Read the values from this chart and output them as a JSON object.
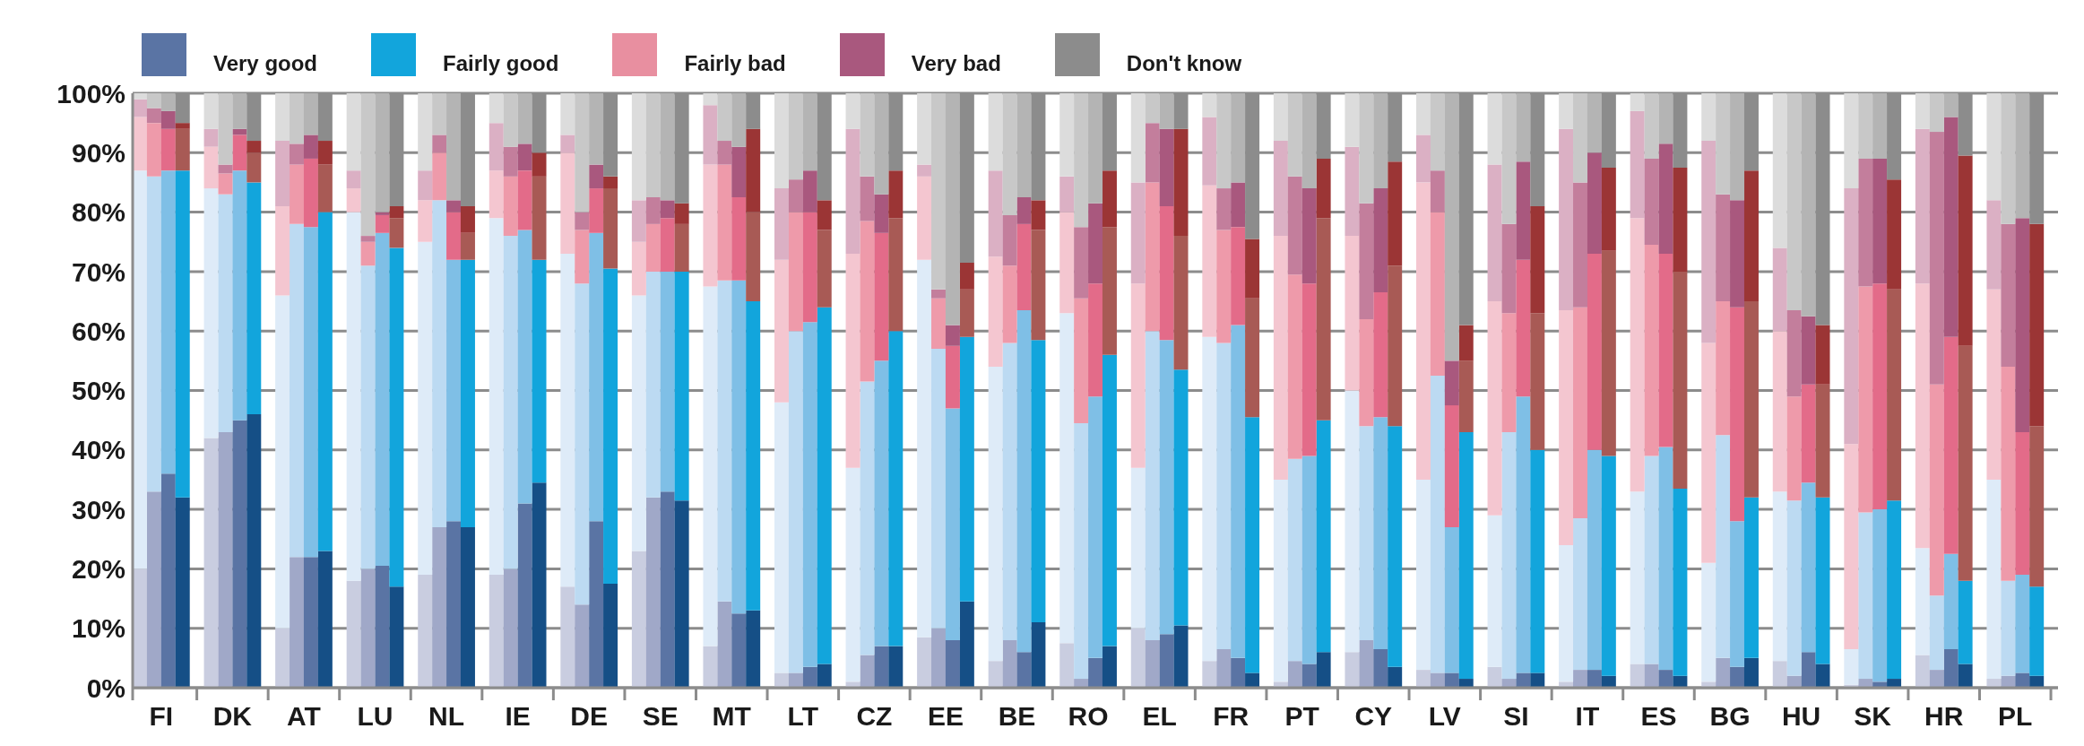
{
  "chart_data": {
    "type": "bar",
    "stacked": true,
    "legend": "top left",
    "grid": "y",
    "ylim": [
      0,
      100
    ],
    "yticks": [
      {
        "value": 0,
        "label": "0%"
      },
      {
        "value": 10,
        "label": "10%"
      },
      {
        "value": 20,
        "label": "20%"
      },
      {
        "value": 30,
        "label": "30%"
      },
      {
        "value": 40,
        "label": "40%"
      },
      {
        "value": 50,
        "label": "50%"
      },
      {
        "value": 60,
        "label": "60%"
      },
      {
        "value": 70,
        "label": "70%"
      },
      {
        "value": 80,
        "label": "80%"
      },
      {
        "value": 90,
        "label": "90%"
      },
      {
        "value": 100,
        "label": "100%"
      }
    ],
    "categories": [
      null,
      "FI",
      null,
      null,
      null,
      null,
      "DK",
      null,
      null,
      null,
      null,
      "AT",
      null,
      null,
      null,
      null,
      "LU",
      null,
      null,
      null,
      null,
      "NL",
      null,
      null,
      null,
      null,
      "IE",
      null,
      null,
      null,
      null,
      "DE",
      null,
      null,
      null,
      null,
      "SE",
      null,
      null,
      null,
      null,
      "MT",
      null,
      null,
      null,
      null,
      "LT",
      null,
      null,
      null,
      null,
      "CZ",
      null,
      null,
      null,
      null,
      "EE",
      null,
      null,
      null,
      null,
      "BE",
      null,
      null,
      null,
      null,
      "RO",
      null,
      null,
      null,
      null,
      "EL",
      null,
      null,
      null,
      null,
      "FR",
      null,
      null,
      null,
      null,
      "PT",
      null,
      null,
      null,
      null,
      "CY",
      null,
      null,
      null,
      null,
      "LV",
      null,
      null,
      null,
      null,
      "SI",
      null,
      null,
      null,
      null,
      "IT",
      null,
      null,
      null,
      null,
      "ES",
      null,
      null,
      null,
      null,
      "BG",
      null,
      null,
      null,
      null,
      "HU",
      null,
      null,
      null,
      null,
      "SK",
      null,
      null,
      null,
      null,
      "HR",
      null,
      null,
      null,
      null,
      "PL",
      null,
      null,
      null
    ],
    "series": [
      {
        "name": "Very good",
        "color": "#5a74a4",
        "values": [
          20,
          33,
          36,
          32,
          null,
          42,
          43,
          45,
          46,
          null,
          10,
          22,
          22,
          23,
          null,
          18,
          20,
          20.5,
          17,
          null,
          19,
          27,
          28,
          27,
          null,
          19,
          20,
          31,
          34.5,
          null,
          17,
          14,
          28,
          17.5,
          null,
          23,
          32,
          33,
          31.5,
          null,
          7,
          14.5,
          12.5,
          13,
          null,
          2.5,
          2.5,
          3.5,
          4,
          null,
          1,
          5.5,
          7,
          7,
          null,
          8.5,
          10,
          8,
          14.5,
          null,
          4.5,
          8,
          6,
          11,
          null,
          7.5,
          1.5,
          5,
          7,
          null,
          10,
          8,
          9,
          10.5,
          null,
          4.5,
          6.5,
          5,
          2.5,
          null,
          1,
          4.5,
          4,
          6,
          null,
          6,
          8,
          6.5,
          3.5,
          null,
          3,
          2.5,
          2.5,
          1.5,
          null,
          3.5,
          1.5,
          2.5,
          2.5,
          null,
          1,
          3,
          3,
          2,
          null,
          4,
          4,
          3,
          2,
          null,
          1,
          5,
          3.5,
          5,
          null,
          4.5,
          2,
          6,
          4,
          null,
          0.5,
          1.5,
          1,
          1.5,
          null,
          5.5,
          3,
          6.5,
          4,
          null,
          1.5,
          2,
          2.5,
          2,
          null
        ],
        "colors": [
          "#c9cde0",
          "#a0a8c8",
          "#5a74a4",
          "#154f86",
          null,
          "#c9cde0",
          "#a0a8c8",
          "#5a74a4",
          "#154f86",
          null,
          "#c9cde0",
          "#a0a8c8",
          "#5a74a4",
          "#154f86",
          null,
          "#c9cde0",
          "#a0a8c8",
          "#5a74a4",
          "#154f86",
          null,
          "#c9cde0",
          "#a0a8c8",
          "#5a74a4",
          "#154f86",
          null,
          "#c9cde0",
          "#a0a8c8",
          "#5a74a4",
          "#154f86",
          null,
          "#c9cde0",
          "#a0a8c8",
          "#5a74a4",
          "#154f86",
          null,
          "#c9cde0",
          "#a0a8c8",
          "#5a74a4",
          "#154f86",
          null,
          "#c9cde0",
          "#a0a8c8",
          "#5a74a4",
          "#154f86",
          null,
          "#c9cde0",
          "#a0a8c8",
          "#5a74a4",
          "#154f86",
          null,
          "#c9cde0",
          "#a0a8c8",
          "#5a74a4",
          "#154f86",
          null,
          "#c9cde0",
          "#a0a8c8",
          "#5a74a4",
          "#154f86",
          null,
          "#c9cde0",
          "#a0a8c8",
          "#5a74a4",
          "#154f86",
          null,
          "#c9cde0",
          "#a0a8c8",
          "#5a74a4",
          "#154f86",
          null,
          "#c9cde0",
          "#a0a8c8",
          "#5a74a4",
          "#154f86",
          null,
          "#c9cde0",
          "#a0a8c8",
          "#5a74a4",
          "#154f86",
          null,
          "#c9cde0",
          "#a0a8c8",
          "#5a74a4",
          "#154f86",
          null,
          "#c9cde0",
          "#a0a8c8",
          "#5a74a4",
          "#154f86",
          null,
          "#c9cde0",
          "#a0a8c8",
          "#5a74a4",
          "#154f86",
          null,
          "#c9cde0",
          "#a0a8c8",
          "#5a74a4",
          "#154f86",
          null,
          "#c9cde0",
          "#a0a8c8",
          "#5a74a4",
          "#154f86",
          null,
          "#c9cde0",
          "#a0a8c8",
          "#5a74a4",
          "#154f86",
          null,
          "#c9cde0",
          "#a0a8c8",
          "#5a74a4",
          "#154f86",
          null,
          "#c9cde0",
          "#a0a8c8",
          "#5a74a4",
          "#154f86",
          null,
          "#c9cde0",
          "#a0a8c8",
          "#5a74a4",
          "#154f86",
          null,
          "#c9cde0",
          "#a0a8c8",
          "#5a74a4",
          "#154f86",
          null,
          "#c9cde0",
          "#a0a8c8",
          "#5a74a4",
          "#154f86",
          null
        ]
      },
      {
        "name": "Fairly good",
        "color": "#12a5dc",
        "values": [
          67,
          53,
          51,
          55,
          null,
          42,
          40,
          42,
          39,
          null,
          56,
          56,
          55.5,
          57,
          null,
          62,
          51,
          56,
          57,
          null,
          56,
          55,
          44,
          45,
          null,
          60,
          56,
          46,
          37.5,
          null,
          56,
          54,
          48.5,
          53,
          null,
          43,
          38,
          37,
          38.5,
          null,
          60.5,
          54,
          56,
          52,
          null,
          45.5,
          57.5,
          58,
          60,
          null,
          36,
          46,
          48,
          53,
          null,
          63.5,
          47,
          39,
          44.5,
          null,
          49.5,
          50,
          57.5,
          47.5,
          null,
          55.5,
          43,
          44,
          49,
          null,
          27,
          52,
          49.5,
          43,
          null,
          54.5,
          51.5,
          56,
          43,
          null,
          34,
          34,
          35,
          39,
          null,
          44,
          36,
          39,
          40.5,
          null,
          32,
          50,
          24.5,
          41.5,
          null,
          25.5,
          41.5,
          46.5,
          37.5,
          null,
          23,
          25.5,
          37,
          37,
          null,
          29,
          35,
          37.5,
          31.5,
          null,
          20,
          37.5,
          24.5,
          27,
          null,
          28.5,
          29.5,
          28.5,
          28,
          null,
          6,
          28,
          29,
          30,
          null,
          18,
          12.5,
          16,
          14,
          null,
          33.5,
          16,
          16.5,
          15,
          null
        ],
        "colors": [
          "#deebf8",
          "#bcdaf2",
          "#7fbfe6",
          "#12a5dc",
          null,
          "#deebf8",
          "#bcdaf2",
          "#7fbfe6",
          "#12a5dc",
          null,
          "#deebf8",
          "#bcdaf2",
          "#7fbfe6",
          "#12a5dc",
          null,
          "#deebf8",
          "#bcdaf2",
          "#7fbfe6",
          "#12a5dc",
          null,
          "#deebf8",
          "#bcdaf2",
          "#7fbfe6",
          "#12a5dc",
          null,
          "#deebf8",
          "#bcdaf2",
          "#7fbfe6",
          "#12a5dc",
          null,
          "#deebf8",
          "#bcdaf2",
          "#7fbfe6",
          "#12a5dc",
          null,
          "#deebf8",
          "#bcdaf2",
          "#7fbfe6",
          "#12a5dc",
          null,
          "#deebf8",
          "#bcdaf2",
          "#7fbfe6",
          "#12a5dc",
          null,
          "#deebf8",
          "#bcdaf2",
          "#7fbfe6",
          "#12a5dc",
          null,
          "#deebf8",
          "#bcdaf2",
          "#7fbfe6",
          "#12a5dc",
          null,
          "#deebf8",
          "#bcdaf2",
          "#7fbfe6",
          "#12a5dc",
          null,
          "#deebf8",
          "#bcdaf2",
          "#7fbfe6",
          "#12a5dc",
          null,
          "#deebf8",
          "#bcdaf2",
          "#7fbfe6",
          "#12a5dc",
          null,
          "#deebf8",
          "#bcdaf2",
          "#7fbfe6",
          "#12a5dc",
          null,
          "#deebf8",
          "#bcdaf2",
          "#7fbfe6",
          "#12a5dc",
          null,
          "#deebf8",
          "#bcdaf2",
          "#7fbfe6",
          "#12a5dc",
          null,
          "#deebf8",
          "#bcdaf2",
          "#7fbfe6",
          "#12a5dc",
          null,
          "#deebf8",
          "#bcdaf2",
          "#7fbfe6",
          "#12a5dc",
          null,
          "#deebf8",
          "#bcdaf2",
          "#7fbfe6",
          "#12a5dc",
          null,
          "#deebf8",
          "#bcdaf2",
          "#7fbfe6",
          "#12a5dc",
          null,
          "#deebf8",
          "#bcdaf2",
          "#7fbfe6",
          "#12a5dc",
          null,
          "#deebf8",
          "#bcdaf2",
          "#7fbfe6",
          "#12a5dc",
          null,
          "#deebf8",
          "#bcdaf2",
          "#7fbfe6",
          "#12a5dc",
          null,
          "#deebf8",
          "#bcdaf2",
          "#7fbfe6",
          "#12a5dc",
          null,
          "#deebf8",
          "#bcdaf2",
          "#7fbfe6",
          "#12a5dc",
          null,
          "#deebf8",
          "#bcdaf2",
          "#7fbfe6",
          "#12a5dc",
          null
        ]
      },
      {
        "name": "Fairly bad",
        "color": "#e88fa0",
        "values": [
          9,
          9,
          7,
          7,
          null,
          7,
          3.5,
          6,
          5,
          null,
          15,
          10,
          11.5,
          8,
          null,
          4,
          4,
          3,
          5,
          null,
          7,
          8,
          8,
          4.5,
          null,
          8,
          10,
          10,
          14,
          null,
          17,
          9,
          7.5,
          13.5,
          null,
          9,
          8,
          9,
          8,
          null,
          20.5,
          19.5,
          14,
          15,
          null,
          24,
          20,
          18.5,
          13,
          null,
          36,
          27,
          21.5,
          19,
          null,
          14,
          8.5,
          10.5,
          8,
          null,
          18.5,
          13,
          14.5,
          18.5,
          null,
          17,
          21,
          19,
          21.5,
          null,
          31,
          25,
          22.5,
          22.5,
          null,
          25.5,
          19,
          16.5,
          20,
          null,
          41,
          31,
          29,
          34,
          null,
          26,
          18,
          21,
          27,
          null,
          50,
          27.5,
          20.5,
          12,
          null,
          36,
          20,
          23,
          23,
          null,
          39.5,
          35.5,
          33,
          34.5,
          null,
          46,
          35.5,
          32.5,
          36.5,
          null,
          37,
          22.5,
          36,
          33,
          null,
          27,
          17.5,
          16.5,
          19,
          null,
          34.5,
          38,
          38,
          35.5,
          null,
          44.5,
          35.5,
          36.5,
          39.5,
          null,
          32,
          36,
          24,
          27,
          null
        ],
        "colors": [
          "#f4c6d0",
          "#ee9aaa",
          "#e36b89",
          "#a85a55",
          null,
          "#f4c6d0",
          "#ee9aaa",
          "#e36b89",
          "#a85a55",
          null,
          "#f4c6d0",
          "#ee9aaa",
          "#e36b89",
          "#a85a55",
          null,
          "#f4c6d0",
          "#ee9aaa",
          "#e36b89",
          "#a85a55",
          null,
          "#f4c6d0",
          "#ee9aaa",
          "#e36b89",
          "#a85a55",
          null,
          "#f4c6d0",
          "#ee9aaa",
          "#e36b89",
          "#a85a55",
          null,
          "#f4c6d0",
          "#ee9aaa",
          "#e36b89",
          "#a85a55",
          null,
          "#f4c6d0",
          "#ee9aaa",
          "#e36b89",
          "#a85a55",
          null,
          "#f4c6d0",
          "#ee9aaa",
          "#e36b89",
          "#a85a55",
          null,
          "#f4c6d0",
          "#ee9aaa",
          "#e36b89",
          "#a85a55",
          null,
          "#f4c6d0",
          "#ee9aaa",
          "#e36b89",
          "#a85a55",
          null,
          "#f4c6d0",
          "#ee9aaa",
          "#e36b89",
          "#a85a55",
          null,
          "#f4c6d0",
          "#ee9aaa",
          "#e36b89",
          "#a85a55",
          null,
          "#f4c6d0",
          "#ee9aaa",
          "#e36b89",
          "#a85a55",
          null,
          "#f4c6d0",
          "#ee9aaa",
          "#e36b89",
          "#a85a55",
          null,
          "#f4c6d0",
          "#ee9aaa",
          "#e36b89",
          "#a85a55",
          null,
          "#f4c6d0",
          "#ee9aaa",
          "#e36b89",
          "#a85a55",
          null,
          "#f4c6d0",
          "#ee9aaa",
          "#e36b89",
          "#a85a55",
          null,
          "#f4c6d0",
          "#ee9aaa",
          "#e36b89",
          "#a85a55",
          null,
          "#f4c6d0",
          "#ee9aaa",
          "#e36b89",
          "#a85a55",
          null,
          "#f4c6d0",
          "#ee9aaa",
          "#e36b89",
          "#a85a55",
          null,
          "#f4c6d0",
          "#ee9aaa",
          "#e36b89",
          "#a85a55",
          null,
          "#f4c6d0",
          "#ee9aaa",
          "#e36b89",
          "#a85a55",
          null,
          "#f4c6d0",
          "#ee9aaa",
          "#e36b89",
          "#a85a55",
          null,
          "#f4c6d0",
          "#ee9aaa",
          "#e36b89",
          "#a85a55",
          null,
          "#f4c6d0",
          "#ee9aaa",
          "#e36b89",
          "#a85a55",
          null,
          "#f4c6d0",
          "#ee9aaa",
          "#e36b89",
          "#a85a55",
          null
        ]
      },
      {
        "name": "Very bad",
        "color": "#a9587e",
        "values": [
          3,
          2.5,
          3,
          1,
          null,
          3,
          1.5,
          1,
          2,
          null,
          11,
          3.5,
          4,
          4,
          null,
          3,
          1,
          0.5,
          2,
          null,
          5,
          3,
          2,
          4.5,
          null,
          8,
          5,
          4.5,
          4,
          null,
          3,
          3,
          4,
          2,
          null,
          7,
          4.5,
          3,
          3.5,
          null,
          10,
          4,
          8.5,
          14,
          null,
          12,
          5.5,
          7,
          5,
          null,
          21,
          7.5,
          6.5,
          8,
          null,
          2,
          1.5,
          3.5,
          4.5,
          null,
          14.5,
          8.5,
          4.5,
          5,
          null,
          6,
          12,
          13.5,
          9.5,
          null,
          17,
          10,
          13,
          18,
          null,
          11.5,
          7,
          7.5,
          10,
          null,
          16,
          16.5,
          16,
          10,
          null,
          15,
          19.5,
          17.5,
          17.5,
          null,
          8,
          7,
          7.5,
          6,
          null,
          23,
          15,
          16.5,
          18,
          null,
          30.5,
          21,
          17,
          14,
          null,
          18,
          14.5,
          18.5,
          17.5,
          null,
          34,
          18,
          18,
          22,
          null,
          14,
          14.5,
          11.5,
          10,
          null,
          43,
          21.5,
          21,
          18.5,
          null,
          26,
          42.5,
          37,
          32,
          null,
          15,
          24,
          36,
          34,
          null
        ],
        "colors": [
          "#dbb0c4",
          "#c37e9c",
          "#a9587e",
          "#9b3535",
          null,
          "#dbb0c4",
          "#c37e9c",
          "#a9587e",
          "#9b3535",
          null,
          "#dbb0c4",
          "#c37e9c",
          "#a9587e",
          "#9b3535",
          null,
          "#dbb0c4",
          "#c37e9c",
          "#a9587e",
          "#9b3535",
          null,
          "#dbb0c4",
          "#c37e9c",
          "#a9587e",
          "#9b3535",
          null,
          "#dbb0c4",
          "#c37e9c",
          "#a9587e",
          "#9b3535",
          null,
          "#dbb0c4",
          "#c37e9c",
          "#a9587e",
          "#9b3535",
          null,
          "#dbb0c4",
          "#c37e9c",
          "#a9587e",
          "#9b3535",
          null,
          "#dbb0c4",
          "#c37e9c",
          "#a9587e",
          "#9b3535",
          null,
          "#dbb0c4",
          "#c37e9c",
          "#a9587e",
          "#9b3535",
          null,
          "#dbb0c4",
          "#c37e9c",
          "#a9587e",
          "#9b3535",
          null,
          "#dbb0c4",
          "#c37e9c",
          "#a9587e",
          "#9b3535",
          null,
          "#dbb0c4",
          "#c37e9c",
          "#a9587e",
          "#9b3535",
          null,
          "#dbb0c4",
          "#c37e9c",
          "#a9587e",
          "#9b3535",
          null,
          "#dbb0c4",
          "#c37e9c",
          "#a9587e",
          "#9b3535",
          null,
          "#dbb0c4",
          "#c37e9c",
          "#a9587e",
          "#9b3535",
          null,
          "#dbb0c4",
          "#c37e9c",
          "#a9587e",
          "#9b3535",
          null,
          "#dbb0c4",
          "#c37e9c",
          "#a9587e",
          "#9b3535",
          null,
          "#dbb0c4",
          "#c37e9c",
          "#a9587e",
          "#9b3535",
          null,
          "#dbb0c4",
          "#c37e9c",
          "#a9587e",
          "#9b3535",
          null,
          "#dbb0c4",
          "#c37e9c",
          "#a9587e",
          "#9b3535",
          null,
          "#dbb0c4",
          "#c37e9c",
          "#a9587e",
          "#9b3535",
          null,
          "#dbb0c4",
          "#c37e9c",
          "#a9587e",
          "#9b3535",
          null,
          "#dbb0c4",
          "#c37e9c",
          "#a9587e",
          "#9b3535",
          null,
          "#dbb0c4",
          "#c37e9c",
          "#a9587e",
          "#9b3535",
          null,
          "#dbb0c4",
          "#c37e9c",
          "#a9587e",
          "#9b3535",
          null,
          "#dbb0c4",
          "#c37e9c",
          "#a9587e",
          "#9b3535",
          null
        ]
      },
      {
        "name": "Don't know",
        "color": "#8c8c8c",
        "values": [
          1,
          2.5,
          3,
          5,
          null,
          6,
          12,
          6,
          8,
          null,
          8,
          8.5,
          7,
          8,
          null,
          13,
          24,
          20,
          19,
          null,
          13,
          7,
          18,
          19,
          null,
          5,
          9,
          8.5,
          10,
          null,
          7,
          20,
          12,
          14,
          null,
          18,
          17.5,
          18,
          18.5,
          null,
          2,
          8,
          9,
          6,
          null,
          16,
          14.5,
          13,
          18,
          null,
          6,
          14,
          17,
          13,
          null,
          12,
          33,
          39,
          28.5,
          null,
          13,
          20.5,
          17.5,
          18,
          null,
          14,
          22.5,
          18.5,
          13,
          null,
          15,
          5,
          6,
          6,
          null,
          4,
          16,
          15,
          24.5,
          null,
          8,
          14,
          16,
          11,
          null,
          9,
          18.5,
          16,
          11.5,
          null,
          7,
          13,
          45,
          39,
          null,
          12,
          22,
          11.5,
          19,
          null,
          6,
          15,
          10,
          12.5,
          null,
          3,
          11,
          8.5,
          12.5,
          null,
          8,
          17,
          18,
          13,
          null,
          26,
          36.5,
          37.5,
          39,
          null,
          16,
          11,
          11,
          14.5,
          null,
          6,
          6.5,
          4,
          10.5,
          null,
          18,
          22,
          21,
          22,
          null
        ],
        "colors": [
          "#dcdcdc",
          "#c8c8c8",
          "#b4b4b4",
          "#8c8c8c",
          null,
          "#dcdcdc",
          "#c8c8c8",
          "#b4b4b4",
          "#8c8c8c",
          null,
          "#dcdcdc",
          "#c8c8c8",
          "#b4b4b4",
          "#8c8c8c",
          null,
          "#dcdcdc",
          "#c8c8c8",
          "#b4b4b4",
          "#8c8c8c",
          null,
          "#dcdcdc",
          "#c8c8c8",
          "#b4b4b4",
          "#8c8c8c",
          null,
          "#dcdcdc",
          "#c8c8c8",
          "#b4b4b4",
          "#8c8c8c",
          null,
          "#dcdcdc",
          "#c8c8c8",
          "#b4b4b4",
          "#8c8c8c",
          null,
          "#dcdcdc",
          "#c8c8c8",
          "#b4b4b4",
          "#8c8c8c",
          null,
          "#dcdcdc",
          "#c8c8c8",
          "#b4b4b4",
          "#8c8c8c",
          null,
          "#dcdcdc",
          "#c8c8c8",
          "#b4b4b4",
          "#8c8c8c",
          null,
          "#dcdcdc",
          "#c8c8c8",
          "#b4b4b4",
          "#8c8c8c",
          null,
          "#dcdcdc",
          "#c8c8c8",
          "#b4b4b4",
          "#8c8c8c",
          null,
          "#dcdcdc",
          "#c8c8c8",
          "#b4b4b4",
          "#8c8c8c",
          null,
          "#dcdcdc",
          "#c8c8c8",
          "#b4b4b4",
          "#8c8c8c",
          null,
          "#dcdcdc",
          "#c8c8c8",
          "#b4b4b4",
          "#8c8c8c",
          null,
          "#dcdcdc",
          "#c8c8c8",
          "#b4b4b4",
          "#8c8c8c",
          null,
          "#dcdcdc",
          "#c8c8c8",
          "#b4b4b4",
          "#8c8c8c",
          null,
          "#dcdcdc",
          "#c8c8c8",
          "#b4b4b4",
          "#8c8c8c",
          null,
          "#dcdcdc",
          "#c8c8c8",
          "#b4b4b4",
          "#8c8c8c",
          null,
          "#dcdcdc",
          "#c8c8c8",
          "#b4b4b4",
          "#8c8c8c",
          null,
          "#dcdcdc",
          "#c8c8c8",
          "#b4b4b4",
          "#8c8c8c",
          null,
          "#dcdcdc",
          "#c8c8c8",
          "#b4b4b4",
          "#8c8c8c",
          null,
          "#dcdcdc",
          "#c8c8c8",
          "#b4b4b4",
          "#8c8c8c",
          null,
          "#dcdcdc",
          "#c8c8c8",
          "#b4b4b4",
          "#8c8c8c",
          null,
          "#dcdcdc",
          "#c8c8c8",
          "#b4b4b4",
          "#8c8c8c",
          null,
          "#dcdcdc",
          "#c8c8c8",
          "#b4b4b4",
          "#8c8c8c",
          null,
          "#dcdcdc",
          "#c8c8c8",
          "#b4b4b4",
          "#8c8c8c",
          null
        ]
      }
    ]
  }
}
